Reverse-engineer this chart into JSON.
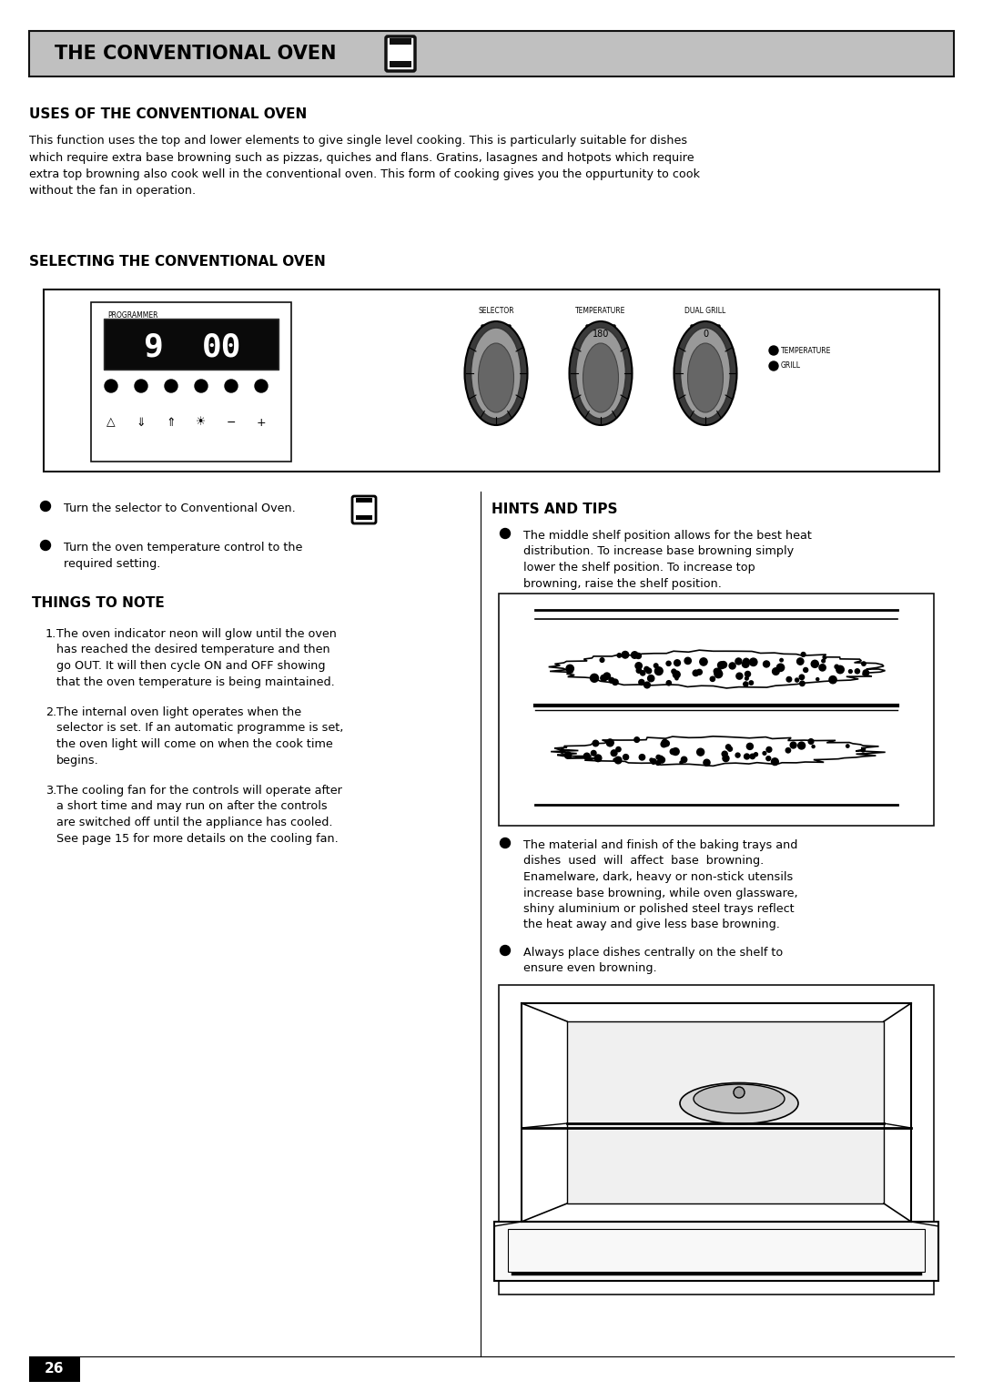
{
  "page_bg": "#ffffff",
  "header_bg": "#c0c0c0",
  "header_text": "THE CONVENTIONAL OVEN",
  "header_fontsize": 15,
  "section1_title": "USES OF THE CONVENTIONAL OVEN",
  "section1_body_lines": [
    "This function uses the top and lower elements to give single level cooking. This is particularly suitable for dishes",
    "which require extra base browning such as pizzas, quiches and flans. Gratins, lasagnes and hotpots which require",
    "extra top browning also cook well in the conventional oven. This form of cooking gives you the oppurtunity to cook",
    "without the fan in operation."
  ],
  "section2_title": "SELECTING THE CONVENTIONAL OVEN",
  "bullet1": "Turn the selector to Conventional Oven.",
  "bullet2_line1": "Turn the oven temperature control to the",
  "bullet2_line2": "required setting.",
  "things_title": "THINGS TO NOTE",
  "note1_lines": [
    "The oven indicator neon will glow until the oven",
    "has reached the desired temperature and then",
    "go OUT. It will then cycle ON and OFF showing",
    "that the oven temperature is being maintained."
  ],
  "note2_lines": [
    "The internal oven light operates when the",
    "selector is set. If an automatic programme is set,",
    "the oven light will come on when the cook time",
    "begins."
  ],
  "note3_lines": [
    "The cooling fan for the controls will operate after",
    "a short time and may run on after the controls",
    "are switched off until the appliance has cooled.",
    "See page 15 for more details on the cooling fan."
  ],
  "hints_title": "HINTS AND TIPS",
  "hint1_lines": [
    "The middle shelf position allows for the best heat",
    "distribution. To increase base browning simply",
    "lower the shelf position. To increase top",
    "browning, raise the shelf position."
  ],
  "hint2_lines": [
    "The material and finish of the baking trays and",
    "dishes  used  will  affect  base  browning.",
    "Enamelware, dark, heavy or non-stick utensils",
    "increase base browning, while oven glassware,",
    "shiny aluminium or polished steel trays reflect",
    "the heat away and give less base browning."
  ],
  "hint3_lines": [
    "Always place dishes centrally on the shelf to",
    "ensure even browning."
  ],
  "page_num": "26",
  "text_color": "#000000",
  "body_fontsize": 9.2,
  "title_fontsize": 10.5
}
